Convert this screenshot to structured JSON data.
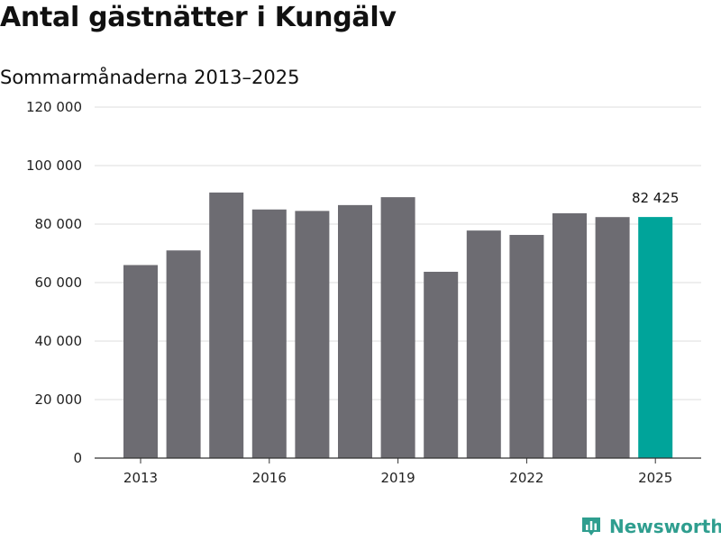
{
  "title": "Antal gästnätter i Kungälv",
  "subtitle": "Sommarmånaderna 2013–2025",
  "brand": {
    "name": "Newsworthy",
    "icon": "bar-chart-badge-icon"
  },
  "colors": {
    "bar": "#6d6c72",
    "highlight": "#00a49a",
    "grid": "#dddddd",
    "axis": "#333333",
    "brand": "#2f9e8f"
  },
  "chart_data": {
    "type": "bar",
    "title": "Antal gästnätter i Kungälv",
    "subtitle": "Sommarmånaderna 2013–2025",
    "categories": [
      "2013",
      "2014",
      "2015",
      "2016",
      "2017",
      "2018",
      "2019",
      "2020",
      "2021",
      "2022",
      "2023",
      "2024",
      "2025"
    ],
    "values": [
      66000,
      71000,
      90800,
      85000,
      84500,
      86500,
      89200,
      63700,
      77800,
      76300,
      83700,
      82400,
      82425
    ],
    "highlight_index": 12,
    "data_labels": [
      {
        "index": 12,
        "text": "82 425"
      }
    ],
    "x_tick_labels": [
      "2013",
      "2016",
      "2019",
      "2022",
      "2025"
    ],
    "y_ticks": [
      0,
      20000,
      40000,
      60000,
      80000,
      100000,
      120000
    ],
    "y_tick_labels": [
      "0",
      "20 000",
      "40 000",
      "60 000",
      "80 000",
      "100 000",
      "120 000"
    ],
    "ylim": [
      0,
      120000
    ],
    "xlabel": "",
    "ylabel": "",
    "grid": true,
    "legend": "none"
  }
}
